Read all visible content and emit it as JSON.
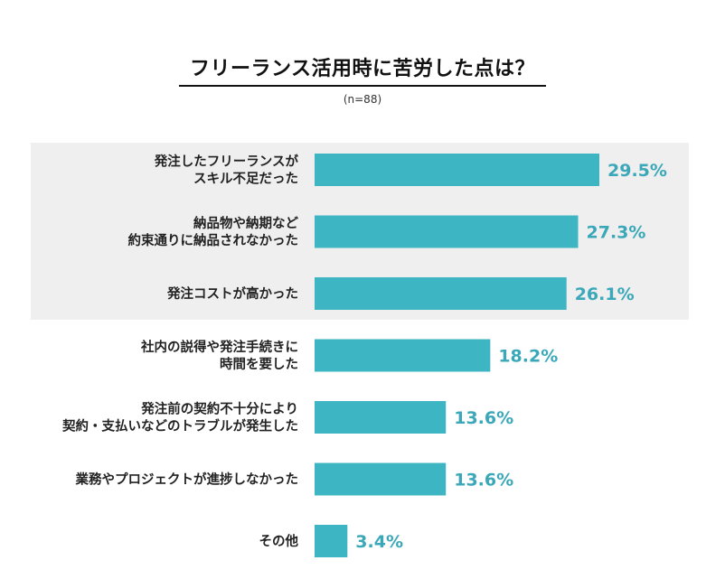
{
  "title": "フリーランス活用時に苦労した点は？",
  "subtitle": "(n=88)",
  "colors": {
    "bar": "#3db5c2",
    "value_label": "#3aa8b8",
    "highlight_band": "#efefef"
  },
  "chart_data": {
    "type": "bar",
    "orientation": "horizontal",
    "categories": [
      [
        "発注したフリーランスが",
        "スキル不足だった"
      ],
      [
        "納品物や納期など",
        "約束通りに納品されなかった"
      ],
      [
        "発注コストが高かった"
      ],
      [
        "社内の説得や発注手続きに",
        "時間を要した"
      ],
      [
        "発注前の契約不十分により",
        "契約・支払いなどのトラブルが発生した"
      ],
      [
        "業務やプロジェクトが進捗しなかった"
      ],
      [
        "その他"
      ]
    ],
    "values": [
      29.5,
      27.3,
      26.1,
      18.2,
      13.6,
      13.6,
      3.4
    ],
    "value_labels": [
      "29.5%",
      "27.3%",
      "26.1%",
      "18.2%",
      "13.6%",
      "13.6%",
      "3.4%"
    ],
    "highlighted_top": 3,
    "xlim": [
      0,
      29.5
    ],
    "grid": false
  }
}
